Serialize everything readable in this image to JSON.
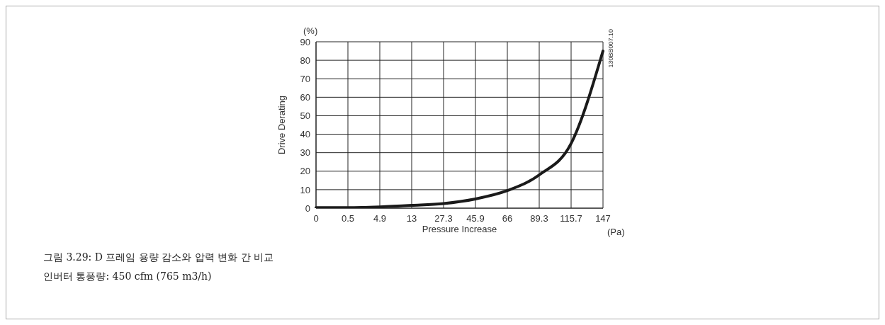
{
  "chart_data": {
    "type": "line",
    "xlabel": "Pressure Increase",
    "ylabel": "Drive Derating",
    "categories": [
      "0",
      "0.5",
      "4.9",
      "13",
      "27.3",
      "45.9",
      "66",
      "89.3",
      "115.7",
      "147"
    ],
    "series": [
      {
        "color": "#1a1a1a",
        "values": [
          0.3,
          0.3,
          0.7,
          1.5,
          2.5,
          5,
          9.5,
          18,
          35,
          85
        ]
      }
    ],
    "ylim": [
      0,
      90
    ],
    "yticks": [
      0,
      10,
      20,
      30,
      40,
      50,
      60,
      70,
      80,
      90
    ],
    "grid": true,
    "marker": "none",
    "line_style": "solid",
    "annotations": [
      "(%)",
      "(Pa)",
      "130BB007.10",
      "그림 3.29: D 프레임 용량 감소와 압력 변화 간 비교",
      "인버터 통풍량: 450 cfm (765 m3/h)"
    ]
  }
}
